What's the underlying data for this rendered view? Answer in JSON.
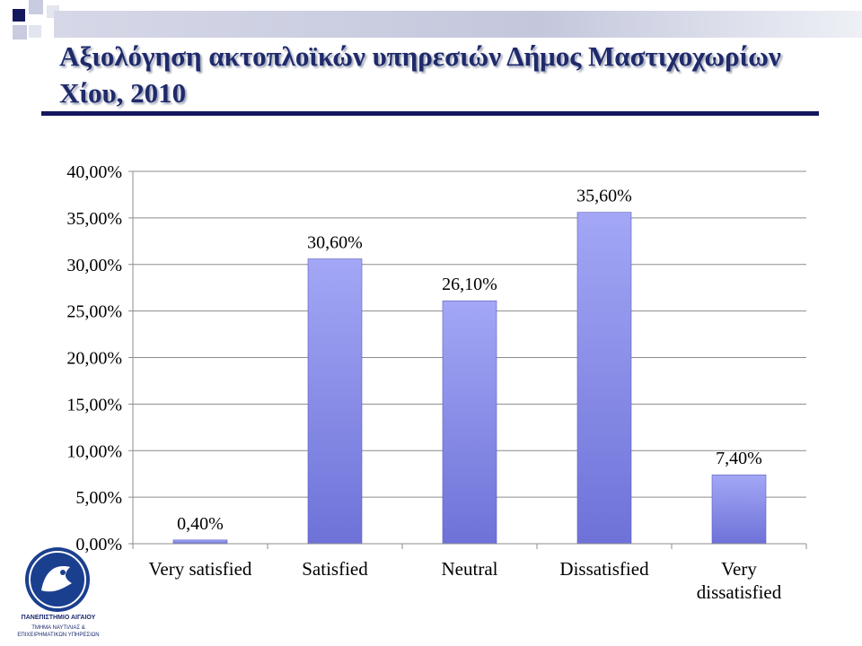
{
  "slide": {
    "title": "Αξιολόγηση ακτοπλοϊκών υπηρεσιών Δήμος Μαστιχοχωρίων Χίου, 2010"
  },
  "logo": {
    "name": "ΠΑΝΕΠΙΣΤΗΜΙΟ ΑΙΓΑΙΟΥ",
    "dept_line1": "ΤΜΗΜΑ ΝΑΥΤΙΛΙΑΣ &",
    "dept_line2": "ΕΠΙΧΕΙΡΗΜΑΤΙΚΩΝ ΥΠΗΡΕΣΙΩΝ"
  },
  "colors": {
    "title": "#1f2a6b",
    "bar_light": "#a3a7f5",
    "bar_dark": "#6e72d8",
    "underline": "#13185e"
  },
  "chart_data": {
    "type": "bar",
    "categories": [
      "Very satisfied",
      "Satisfied",
      "Neutral",
      "Dissatisfied",
      "Very dissatisfied"
    ],
    "values": [
      0.4,
      30.6,
      26.1,
      35.6,
      7.4
    ],
    "data_labels": [
      "0,40%",
      "30,60%",
      "26,10%",
      "35,60%",
      "7,40%"
    ],
    "y_ticks": [
      0,
      5,
      10,
      15,
      20,
      25,
      30,
      35,
      40
    ],
    "y_tick_labels": [
      "0,00%",
      "5,00%",
      "10,00%",
      "15,00%",
      "20,00%",
      "25,00%",
      "30,00%",
      "35,00%",
      "40,00%"
    ],
    "ylim": [
      0,
      40
    ],
    "grid": true,
    "legend": "none",
    "title": "",
    "xlabel": "",
    "ylabel": ""
  }
}
